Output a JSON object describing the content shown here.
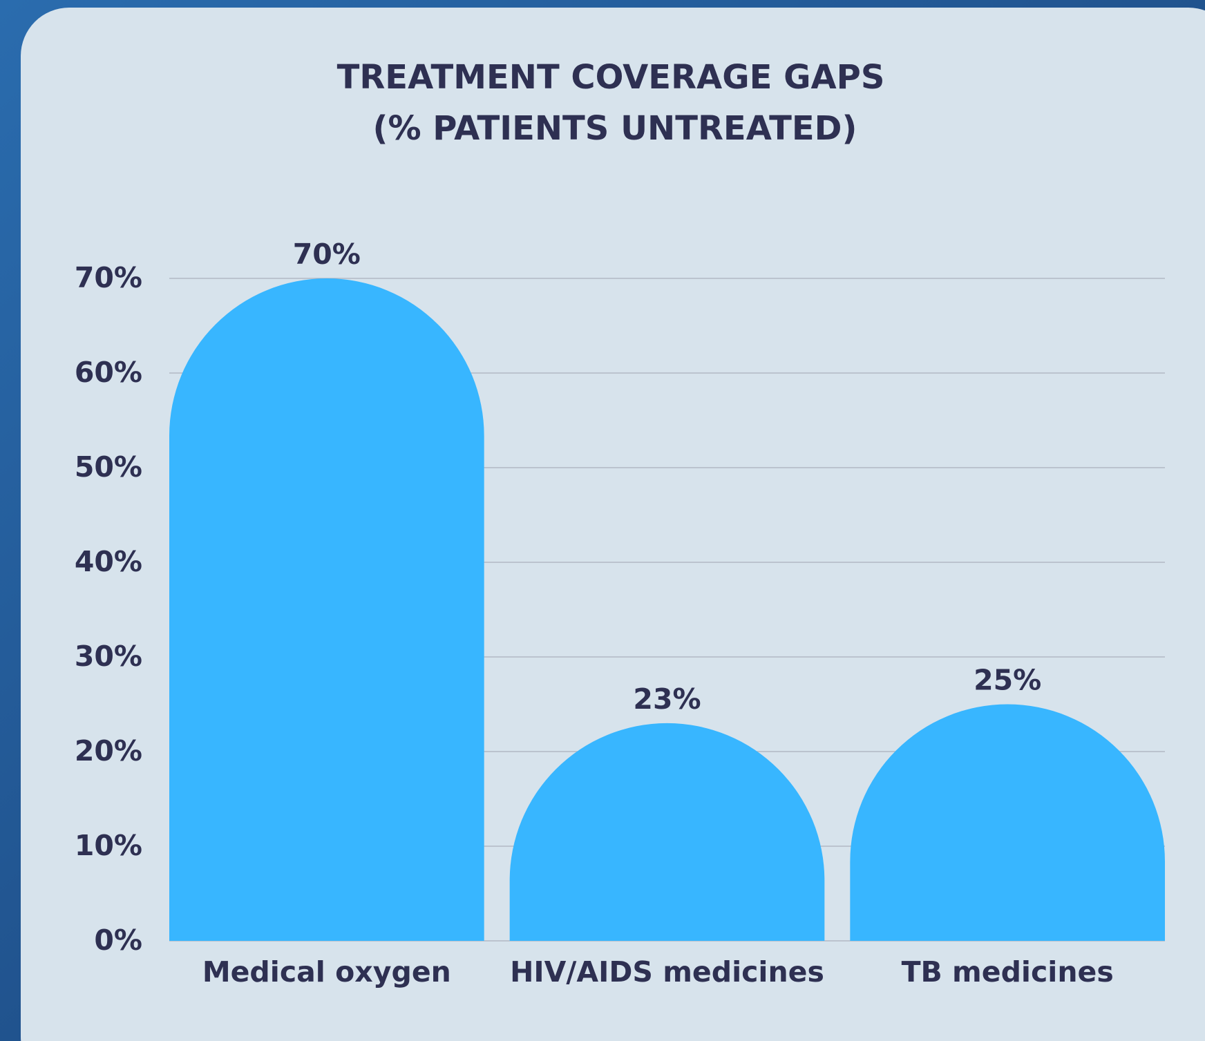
{
  "chart_data": {
    "type": "bar",
    "title": [
      "TREATMENT COVERAGE GAPS",
      "(% PATIENTS UNTREATED)"
    ],
    "categories": [
      "Medical oxygen",
      "HIV/AIDS medicines",
      "TB medicines"
    ],
    "values": [
      70,
      23,
      25
    ],
    "value_labels": [
      "70%",
      "23%",
      "25%"
    ],
    "color": "#38b6ff",
    "ylim": [
      0,
      70
    ],
    "yticks": [
      {
        "value": 0,
        "label": "0%"
      },
      {
        "value": 10,
        "label": "10%"
      },
      {
        "value": 20,
        "label": "20%"
      },
      {
        "value": 30,
        "label": "30%"
      },
      {
        "value": 40,
        "label": "40%"
      },
      {
        "value": 50,
        "label": "50%"
      },
      {
        "value": 60,
        "label": "60%"
      },
      {
        "value": 70,
        "label": "70%"
      }
    ],
    "grid": true
  }
}
